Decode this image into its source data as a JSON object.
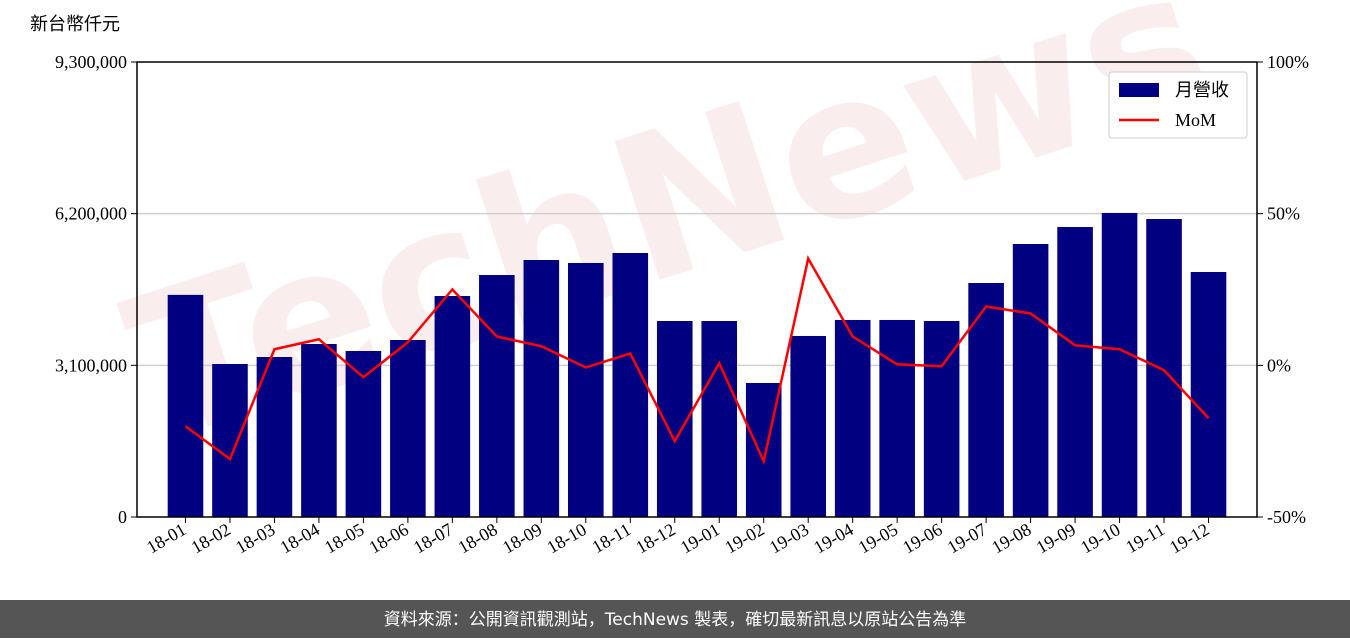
{
  "chart_data": {
    "type": "bar-line",
    "y_label": "新台幣仟元",
    "watermark": "TechNews",
    "footer": "資料來源：公開資訊觀測站，TechNews 製表，確切最新訊息以原站公告為準",
    "categories": [
      "18-01",
      "18-02",
      "18-03",
      "18-04",
      "18-05",
      "18-06",
      "18-07",
      "18-08",
      "18-09",
      "18-10",
      "18-11",
      "18-12",
      "19-01",
      "19-02",
      "19-03",
      "19-04",
      "19-05",
      "19-06",
      "19-07",
      "19-08",
      "19-09",
      "19-10",
      "19-11",
      "19-12"
    ],
    "series": [
      {
        "name": "月營收",
        "type": "bar",
        "color": "#000080",
        "axis": "y",
        "values": [
          4540000,
          3127000,
          3270000,
          3536000,
          3393000,
          3618000,
          4517000,
          4946000,
          5253000,
          5192000,
          5396000,
          4006000,
          4006000,
          2739000,
          3700000,
          4027000,
          4027000,
          4006000,
          4783000,
          5580000,
          5927000,
          6214000,
          6091000,
          5008000
        ]
      },
      {
        "name": "MoM",
        "type": "line",
        "color": "#ff0000",
        "axis": "y2",
        "values": [
          -20.1,
          -30.9,
          5.3,
          8.6,
          -3.9,
          7.6,
          25.0,
          9.5,
          6.3,
          -0.7,
          3.9,
          -25.0,
          0.7,
          -31.6,
          35.2,
          9.5,
          0.3,
          -0.3,
          19.4,
          17.1,
          6.6,
          5.3,
          -1.6,
          -17.4
        ]
      }
    ],
    "ylim": [
      0,
      9300000
    ],
    "yticks": [
      0,
      {
        "value": 3100000,
        "label": "3,100,000"
      },
      {
        "value": 6200000,
        "label": "6,200,000"
      },
      {
        "value": 9300000,
        "label": "9,300,000"
      }
    ],
    "y2lim": [
      -50,
      100
    ],
    "y2ticks": [
      {
        "value": -50,
        "label": "-50%"
      },
      {
        "value": 0,
        "label": "0%"
      },
      {
        "value": 50,
        "label": "50%"
      },
      {
        "value": 100,
        "label": "100%"
      }
    ],
    "grid": true,
    "legend": "upper right"
  }
}
